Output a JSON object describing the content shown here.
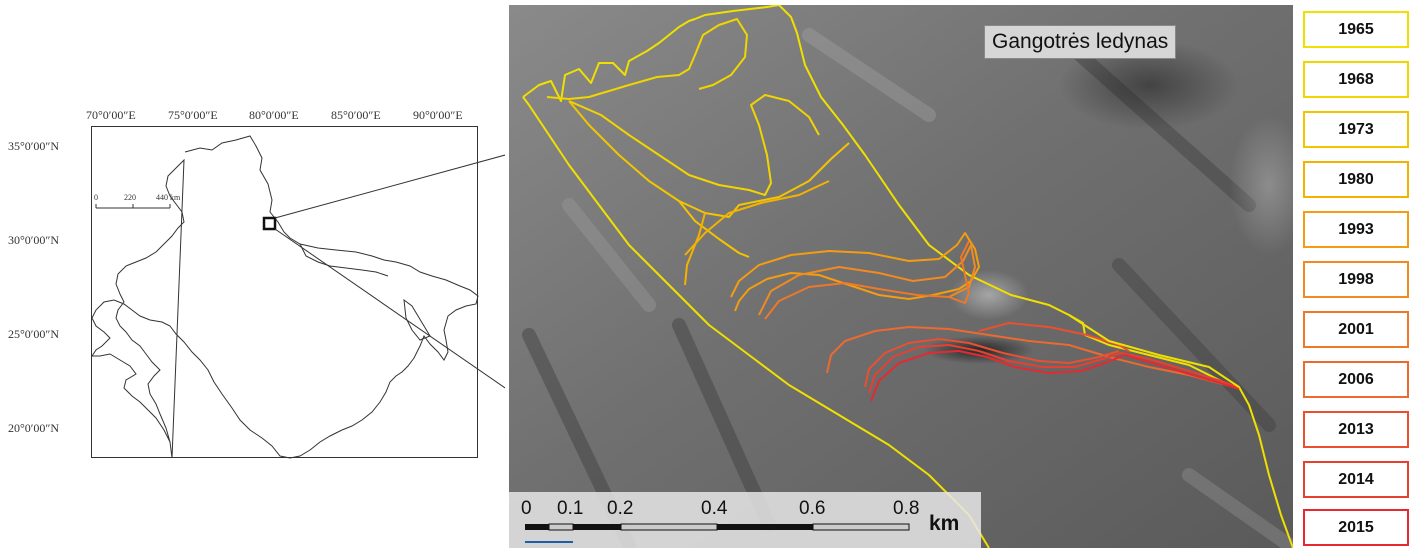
{
  "locator": {
    "lon_ticks": [
      "70°0′00″E",
      "75°0′00″E",
      "80°0′00″E",
      "85°0′00″E",
      "90°0′00″E"
    ],
    "lat_ticks": [
      "35°0′00″N",
      "30°0′00″N",
      "25°0′00″N",
      "20°0′00″N"
    ],
    "scale_labels": [
      "0",
      "220",
      "440 km"
    ]
  },
  "satellite": {
    "title": "Gangotrės ledynas",
    "scale_labels": [
      "0",
      "0.1",
      "0.2",
      "0.4",
      "0.6",
      "0.8"
    ],
    "scale_unit": "km"
  },
  "legend": {
    "years": [
      "1965",
      "1968",
      "1973",
      "1980",
      "1993",
      "1998",
      "2001",
      "2006",
      "2013",
      "2014",
      "2015"
    ],
    "colors": [
      "#f0e000",
      "#f1d400",
      "#f3c400",
      "#f4b200",
      "#f49d10",
      "#f18a20",
      "#ee7828",
      "#ec6a30",
      "#ea5030",
      "#e84030",
      "#e42a30"
    ]
  }
}
